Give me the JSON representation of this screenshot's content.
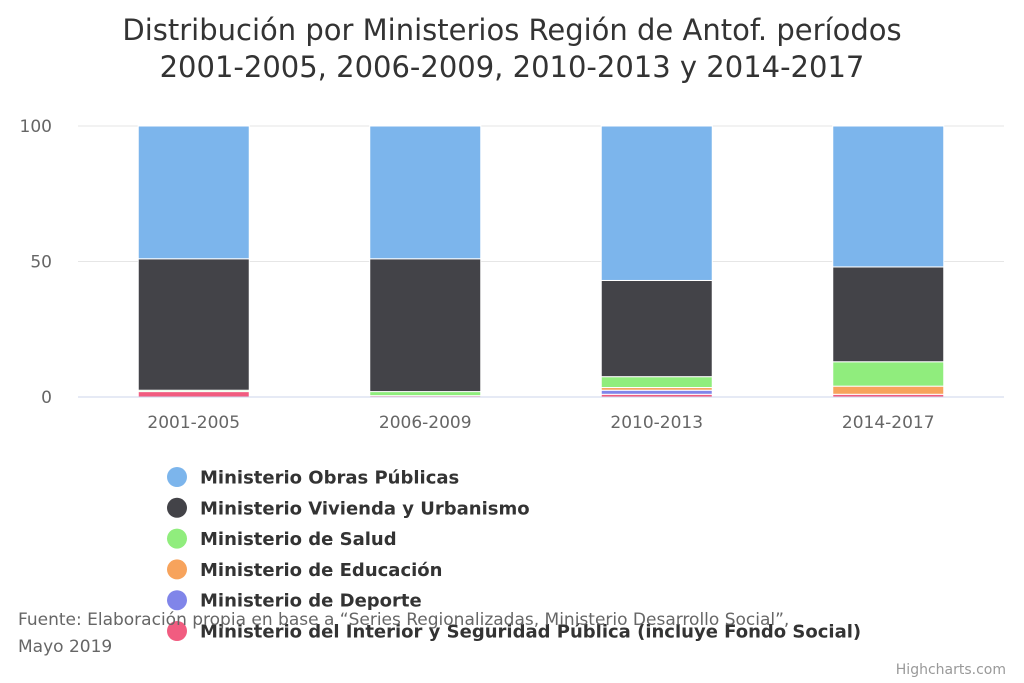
{
  "chart_data": {
    "type": "bar",
    "stacked": true,
    "title": "Distribución por Ministerios Región de Antof. períodos",
    "subtitle_line": "2001-2005, 2006-2009, 2010-2013 y 2014-2017",
    "categories": [
      "2001-2005",
      "2006-2009",
      "2010-2013",
      "2014-2017"
    ],
    "ylim": [
      0,
      100
    ],
    "yticks": [
      "0",
      "50",
      "100"
    ],
    "grid": true,
    "legend_position": "bottom-left",
    "series": [
      {
        "name": "Ministerio Obras Públicas",
        "color": "#7cb5ec",
        "values": [
          49,
          49,
          57,
          52
        ]
      },
      {
        "name": "Ministerio Vivienda y Urbanismo",
        "color": "#434348",
        "values": [
          48.5,
          49,
          35.5,
          35
        ]
      },
      {
        "name": "Ministerio de Salud",
        "color": "#90ed7d",
        "values": [
          0.5,
          1.5,
          4,
          9
        ]
      },
      {
        "name": "Ministerio de Educación",
        "color": "#f7a35c",
        "values": [
          0,
          0,
          1,
          3
        ]
      },
      {
        "name": "Ministerio de Deporte",
        "color": "#8085e9",
        "values": [
          0,
          0,
          1.5,
          0
        ]
      },
      {
        "name": "Ministerio del Interior y Seguridad Pública (incluye Fondo Social)",
        "color": "#f15c80",
        "values": [
          2,
          0.5,
          1,
          1
        ]
      }
    ]
  },
  "source": {
    "line1": "Fuente: Elaboración propia en base a “Series Regionalizadas, Ministerio Desarrollo Social”,",
    "line2": "Mayo 2019"
  },
  "credits": "Highcharts.com"
}
